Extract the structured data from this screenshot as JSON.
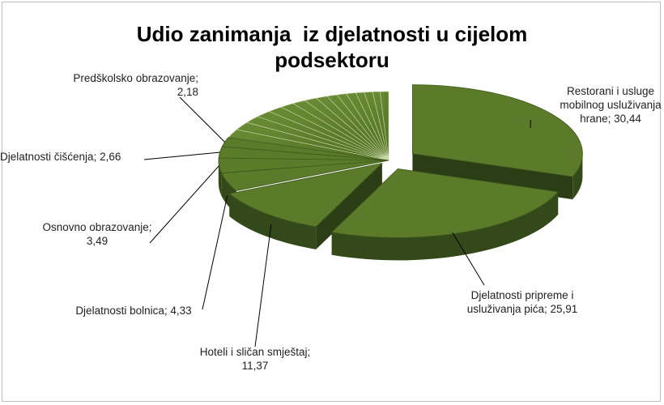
{
  "chart_data": {
    "type": "pie3d",
    "title": "Udio zanimanja  iz djelatnosti u cijelom podsektoru",
    "categories": [
      "Restorani i usluge mobilnog usluživanja hrane;",
      "Djelatnosti pripreme i usluživanja pića;",
      "Hoteli i sličan smještaj;",
      "Djelatnosti bolnica;",
      "Osnovno obrazovanje;",
      "Djelatnosti čišćenja;",
      "Predškolsko obrazovanje;",
      null,
      null,
      null,
      null,
      null,
      null,
      null,
      null,
      null,
      null,
      null,
      null,
      null,
      null,
      null,
      null
    ],
    "values": [
      30.44,
      25.91,
      11.37,
      4.33,
      3.49,
      2.66,
      2.18,
      2.0,
      1.9,
      1.7,
      1.6,
      1.5,
      1.4,
      1.3,
      1.2,
      1.1,
      1.0,
      0.9,
      0.9,
      0.8,
      0.8,
      0.7,
      0.82
    ],
    "value_labels": [
      "30,44",
      "25,91",
      "11,37",
      "4,33",
      "3,49",
      "2,66",
      "2,18",
      null,
      null,
      null,
      null,
      null,
      null,
      null,
      null,
      null,
      null,
      null,
      null,
      null,
      null,
      null,
      null
    ],
    "color": "#5b7b2b"
  }
}
